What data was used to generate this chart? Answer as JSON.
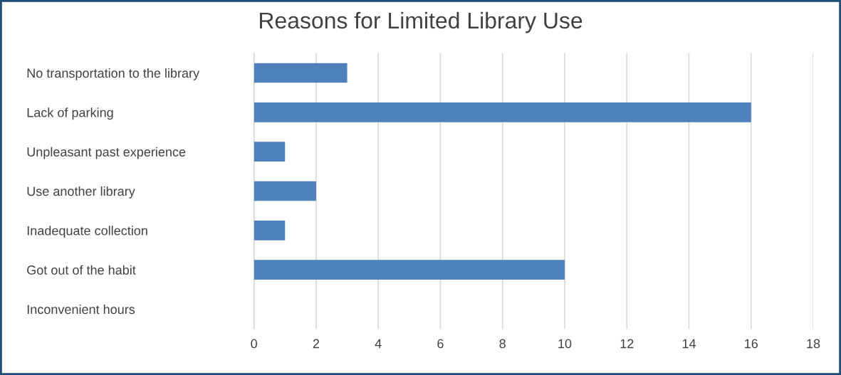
{
  "chart_data": {
    "type": "bar",
    "orientation": "horizontal",
    "title": "Reasons for Limited Library Use",
    "categories": [
      "No transportation to the library",
      "Lack of parking",
      "Unpleasant past experience",
      "Use another library",
      "Inadequate collection",
      "Got out of the habit",
      "Inconvenient hours"
    ],
    "values": [
      3,
      16,
      1,
      2,
      1,
      10,
      0
    ],
    "color": "#4f81bd",
    "xlim": [
      0,
      18
    ],
    "xticks": [
      0,
      2,
      4,
      6,
      8,
      10,
      12,
      14,
      16,
      18
    ],
    "grid": "x",
    "legend": false
  }
}
